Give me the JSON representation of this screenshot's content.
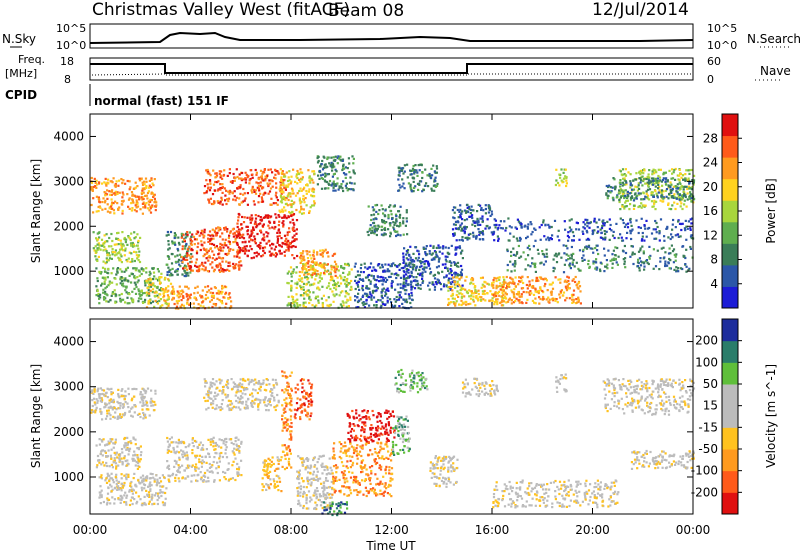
{
  "header": {
    "station": "Christmas Valley West (fitACF)",
    "beam": "Beam 08",
    "date": "12/Jul/2014"
  },
  "params": {
    "nsky_label": "N.Sky",
    "nsearch_label": "N.Search",
    "freq_label_line1": "Freq.",
    "freq_label_line2": "[MHz]",
    "nave_label": "Nave",
    "cpid_label": "CPID",
    "cpid_value": "normal (fast) 151 IF",
    "noise_ticks": [
      "10^5",
      "10^0"
    ],
    "freq_ticks": [
      "18",
      "8"
    ],
    "nave_ticks": [
      "60",
      "0"
    ]
  },
  "colors": {
    "power_scale": [
      "#1c1cd6",
      "#2b57a8",
      "#3a7d58",
      "#5fae4f",
      "#a8d63c",
      "#ffd21f",
      "#ff9a1f",
      "#ff5a1a",
      "#e01010"
    ],
    "velocity_scale": [
      "#e01010",
      "#ff5a1a",
      "#ff9a1f",
      "#ffc21f",
      "#bcbcbc",
      "#bcbcbc",
      "#5fbf3a",
      "#2a7d6a",
      "#1c2c9c"
    ]
  },
  "chart_data": [
    {
      "type": "heatmap",
      "variable": "Power",
      "ylabel": "Slant Range [km]",
      "colorbar_label": "Power [dB]",
      "colorbar_ticks": [
        "28",
        "24",
        "20",
        "16",
        "12",
        "8",
        "4"
      ],
      "yticks": [
        "4000",
        "3000",
        "2000",
        "1000"
      ],
      "xlim_hours": [
        0,
        24
      ],
      "ylim_km": [
        180,
        4500
      ],
      "regions": [
        {
          "t0": 0.0,
          "t1": 2.6,
          "r0": 2300,
          "r1": 3100,
          "level": 6
        },
        {
          "t0": 0.1,
          "t1": 2.0,
          "r0": 1200,
          "r1": 1900,
          "level": 4
        },
        {
          "t0": 0.2,
          "t1": 2.8,
          "r0": 300,
          "r1": 1100,
          "level": 3
        },
        {
          "t0": 2.2,
          "t1": 3.2,
          "r0": 200,
          "r1": 900,
          "level": 5
        },
        {
          "t0": 3.0,
          "t1": 4.0,
          "r0": 900,
          "r1": 1900,
          "level": 2
        },
        {
          "t0": 3.6,
          "t1": 6.0,
          "r0": 1000,
          "r1": 2000,
          "level": 7
        },
        {
          "t0": 4.5,
          "t1": 7.8,
          "r0": 2500,
          "r1": 3300,
          "level": 7
        },
        {
          "t0": 5.8,
          "t1": 8.2,
          "r0": 1300,
          "r1": 2300,
          "level": 8
        },
        {
          "t0": 3.2,
          "t1": 5.6,
          "r0": 180,
          "r1": 700,
          "level": 6
        },
        {
          "t0": 7.5,
          "t1": 8.9,
          "r0": 2300,
          "r1": 3300,
          "level": 5
        },
        {
          "t0": 7.8,
          "t1": 10.4,
          "r0": 200,
          "r1": 1200,
          "level": 4
        },
        {
          "t0": 8.3,
          "t1": 9.8,
          "r0": 900,
          "r1": 1500,
          "level": 6
        },
        {
          "t0": 9.0,
          "t1": 10.5,
          "r0": 2800,
          "r1": 3600,
          "level": 2
        },
        {
          "t0": 11.0,
          "t1": 12.6,
          "r0": 1800,
          "r1": 2500,
          "level": 2
        },
        {
          "t0": 10.5,
          "t1": 12.8,
          "r0": 200,
          "r1": 1200,
          "level": 1
        },
        {
          "t0": 12.2,
          "t1": 13.8,
          "r0": 2800,
          "r1": 3400,
          "level": 2
        },
        {
          "t0": 12.4,
          "t1": 14.8,
          "r0": 600,
          "r1": 1600,
          "level": 1
        },
        {
          "t0": 14.2,
          "t1": 16.6,
          "r0": 250,
          "r1": 900,
          "level": 5
        },
        {
          "t0": 14.4,
          "t1": 16.0,
          "r0": 1700,
          "r1": 2500,
          "level": 1
        },
        {
          "t0": 16.0,
          "t1": 19.5,
          "r0": 300,
          "r1": 900,
          "level": 6
        },
        {
          "t0": 16.5,
          "t1": 24.0,
          "r0": 1000,
          "r1": 1600,
          "level": 2
        },
        {
          "t0": 16.0,
          "t1": 24.0,
          "r0": 1700,
          "r1": 2200,
          "level": 1
        },
        {
          "t0": 18.5,
          "t1": 19.0,
          "r0": 2900,
          "r1": 3300,
          "level": 4
        },
        {
          "t0": 21.0,
          "t1": 24.0,
          "r0": 2400,
          "r1": 3300,
          "level": 4
        },
        {
          "t0": 20.5,
          "t1": 24.0,
          "r0": 2600,
          "r1": 3100,
          "level": 2
        }
      ]
    },
    {
      "type": "heatmap",
      "variable": "Velocity",
      "ylabel": "Slant Range [km]",
      "xlabel": "Time UT",
      "colorbar_label": "Velocity [m s^-1]",
      "colorbar_ticks": [
        "200",
        "100",
        "50",
        "15",
        "-15",
        "-50",
        "-100",
        "-200"
      ],
      "yticks": [
        "4000",
        "3000",
        "2000",
        "1000"
      ],
      "xticks": [
        "00:00",
        "04:00",
        "08:00",
        "12:00",
        "16:00",
        "20:00",
        "00:00"
      ],
      "xlim_hours": [
        0,
        24
      ],
      "ylim_km": [
        180,
        4500
      ],
      "regions": [
        {
          "t0": 0.0,
          "t1": 2.6,
          "r0": 2300,
          "r1": 3000,
          "level": 4
        },
        {
          "t0": 0.2,
          "t1": 2.0,
          "r0": 1200,
          "r1": 1900,
          "level": 4
        },
        {
          "t0": 0.3,
          "t1": 3.0,
          "r0": 400,
          "r1": 1100,
          "level": 4
        },
        {
          "t0": 3.0,
          "t1": 6.0,
          "r0": 900,
          "r1": 1900,
          "level": 4
        },
        {
          "t0": 4.5,
          "t1": 7.5,
          "r0": 2500,
          "r1": 3200,
          "level": 4
        },
        {
          "t0": 6.8,
          "t1": 7.6,
          "r0": 700,
          "r1": 1500,
          "level": 3
        },
        {
          "t0": 7.6,
          "t1": 8.0,
          "r0": 1200,
          "r1": 3400,
          "level": 2
        },
        {
          "t0": 8.1,
          "t1": 8.8,
          "r0": 2300,
          "r1": 3200,
          "level": 1
        },
        {
          "t0": 8.2,
          "t1": 9.6,
          "r0": 300,
          "r1": 1500,
          "level": 4
        },
        {
          "t0": 9.2,
          "t1": 10.2,
          "r0": 180,
          "r1": 500,
          "level": 7
        },
        {
          "t0": 9.6,
          "t1": 12.0,
          "r0": 600,
          "r1": 1800,
          "level": 2
        },
        {
          "t0": 10.2,
          "t1": 12.1,
          "r0": 1800,
          "r1": 2500,
          "level": 0
        },
        {
          "t0": 12.0,
          "t1": 12.7,
          "r0": 1500,
          "r1": 2400,
          "level": 6
        },
        {
          "t0": 12.1,
          "t1": 13.4,
          "r0": 2900,
          "r1": 3400,
          "level": 6
        },
        {
          "t0": 13.5,
          "t1": 14.6,
          "r0": 800,
          "r1": 1500,
          "level": 4
        },
        {
          "t0": 14.8,
          "t1": 16.2,
          "r0": 2800,
          "r1": 3200,
          "level": 4
        },
        {
          "t0": 16.0,
          "t1": 21.0,
          "r0": 350,
          "r1": 950,
          "level": 4
        },
        {
          "t0": 18.5,
          "t1": 19.0,
          "r0": 2900,
          "r1": 3300,
          "level": 4
        },
        {
          "t0": 20.4,
          "t1": 24.0,
          "r0": 2400,
          "r1": 3200,
          "level": 4
        },
        {
          "t0": 21.5,
          "t1": 24.0,
          "r0": 1200,
          "r1": 1600,
          "level": 4
        }
      ]
    }
  ]
}
